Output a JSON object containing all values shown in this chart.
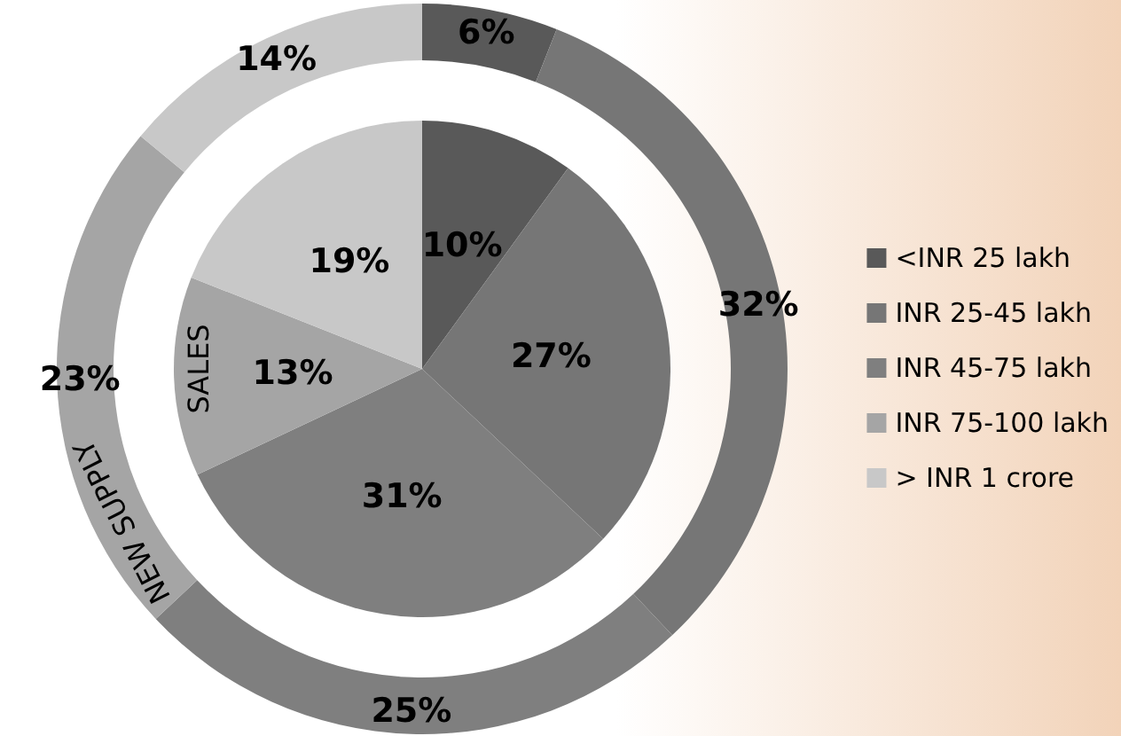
{
  "chart_data": {
    "type": "donut",
    "categories": [
      "<INR 25 lakh",
      "INR 25-45 lakh",
      "INR 45-75 lakh",
      "INR 75-100 lakh",
      "> INR 1 crore"
    ],
    "colors": [
      "#595959",
      "#767676",
      "#7f7f7f",
      "#a5a5a5",
      "#c8c8c8"
    ],
    "legend": "right",
    "series": [
      {
        "name": "SALES",
        "type": "pie",
        "values": [
          10,
          27,
          31,
          13,
          19
        ],
        "value_labels": [
          "10%",
          "27%",
          "31%",
          "13%",
          "19%"
        ]
      },
      {
        "name": "NEW SUPPLY",
        "values": [
          6,
          32,
          25,
          23,
          14
        ],
        "value_labels": [
          "6%",
          "32%",
          "25%",
          "23%",
          "14%"
        ]
      }
    ]
  }
}
